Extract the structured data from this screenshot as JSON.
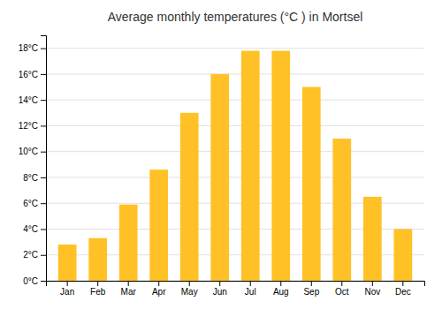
{
  "chart_data": {
    "type": "bar",
    "title": "Average monthly temperatures (°C ) in Mortsel",
    "categories": [
      "Jan",
      "Feb",
      "Mar",
      "Apr",
      "May",
      "Jun",
      "Jul",
      "Aug",
      "Sep",
      "Oct",
      "Nov",
      "Dec"
    ],
    "values": [
      2.8,
      3.3,
      5.9,
      8.6,
      13.0,
      16.0,
      17.8,
      17.8,
      15.0,
      11.0,
      6.5,
      4.0
    ],
    "color": "#FFC125",
    "ylim": [
      0,
      19
    ],
    "yticks": [
      {
        "value": 0,
        "label": "0°C"
      },
      {
        "value": 2,
        "label": "2°C"
      },
      {
        "value": 4,
        "label": "4°C"
      },
      {
        "value": 6,
        "label": "6°C"
      },
      {
        "value": 8,
        "label": "8°C"
      },
      {
        "value": 10,
        "label": "10°C"
      },
      {
        "value": 12,
        "label": "12°C"
      },
      {
        "value": 14,
        "label": "14°C"
      },
      {
        "value": 16,
        "label": "16°C"
      },
      {
        "value": 18,
        "label": "18°C"
      }
    ],
    "grid": true
  }
}
